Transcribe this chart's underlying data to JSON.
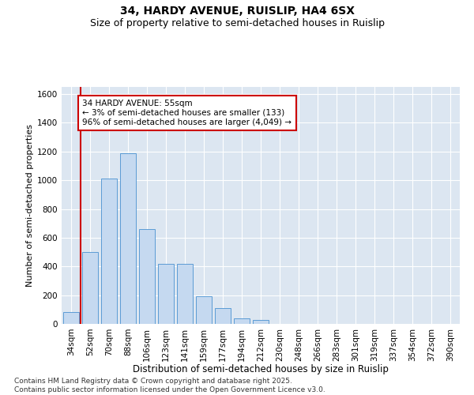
{
  "title1": "34, HARDY AVENUE, RUISLIP, HA4 6SX",
  "title2": "Size of property relative to semi-detached houses in Ruislip",
  "xlabel": "Distribution of semi-detached houses by size in Ruislip",
  "ylabel": "Number of semi-detached properties",
  "annotation_title": "34 HARDY AVENUE: 55sqm",
  "annotation_line1": "← 3% of semi-detached houses are smaller (133)",
  "annotation_line2": "96% of semi-detached houses are larger (4,049) →",
  "footer1": "Contains HM Land Registry data © Crown copyright and database right 2025.",
  "footer2": "Contains public sector information licensed under the Open Government Licence v3.0.",
  "categories": [
    "34sqm",
    "52sqm",
    "70sqm",
    "88sqm",
    "106sqm",
    "123sqm",
    "141sqm",
    "159sqm",
    "177sqm",
    "194sqm",
    "212sqm",
    "230sqm",
    "248sqm",
    "266sqm",
    "283sqm",
    "301sqm",
    "319sqm",
    "337sqm",
    "354sqm",
    "372sqm",
    "390sqm"
  ],
  "values": [
    80,
    500,
    1010,
    1190,
    660,
    420,
    420,
    190,
    110,
    40,
    30,
    0,
    0,
    0,
    0,
    0,
    0,
    0,
    0,
    0,
    0
  ],
  "bar_color": "#c5d9f0",
  "bar_edge_color": "#5b9bd5",
  "vline_color": "#cc0000",
  "vline_x_index": 1.0,
  "plot_bg_color": "#dce6f1",
  "ylim": [
    0,
    1650
  ],
  "yticks": [
    0,
    200,
    400,
    600,
    800,
    1000,
    1200,
    1400,
    1600
  ],
  "title1_fontsize": 10,
  "title2_fontsize": 9,
  "xlabel_fontsize": 8.5,
  "ylabel_fontsize": 8,
  "tick_fontsize": 7.5,
  "annotation_fontsize": 7.5,
  "footer_fontsize": 6.5
}
